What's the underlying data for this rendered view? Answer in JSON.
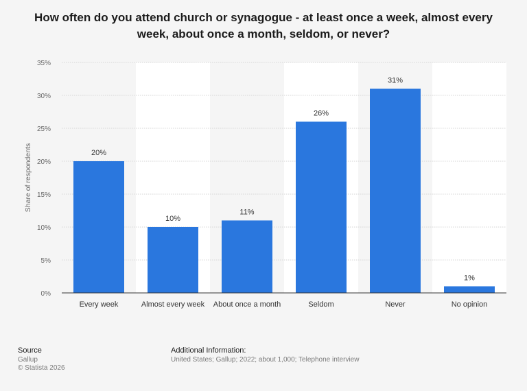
{
  "chart_data": {
    "type": "bar",
    "title": "How often do you attend church or synagogue - at least once a week, almost every week, about once a month, seldom, or never?",
    "xlabel": "",
    "ylabel": "Share of respondents",
    "categories": [
      "Every week",
      "Almost every week",
      "About once a month",
      "Seldom",
      "Never",
      "No opinion"
    ],
    "values": [
      20,
      10,
      11,
      26,
      31,
      1
    ],
    "data_labels": [
      "20%",
      "10%",
      "11%",
      "26%",
      "31%",
      "1%"
    ],
    "ylim": [
      0,
      35
    ],
    "yticks": [
      0,
      5,
      10,
      15,
      20,
      25,
      30,
      35
    ],
    "ytick_labels": [
      "0%",
      "5%",
      "10%",
      "15%",
      "20%",
      "25%",
      "30%",
      "35%"
    ],
    "grid": true,
    "bar_color": "#2a77de"
  },
  "footer": {
    "source_heading": "Source",
    "source_name": "Gallup",
    "copyright": "© Statista 2026",
    "info_heading": "Additional Information:",
    "info_text": "United States; Gallup; 2022; about 1,000; Telephone interview"
  }
}
